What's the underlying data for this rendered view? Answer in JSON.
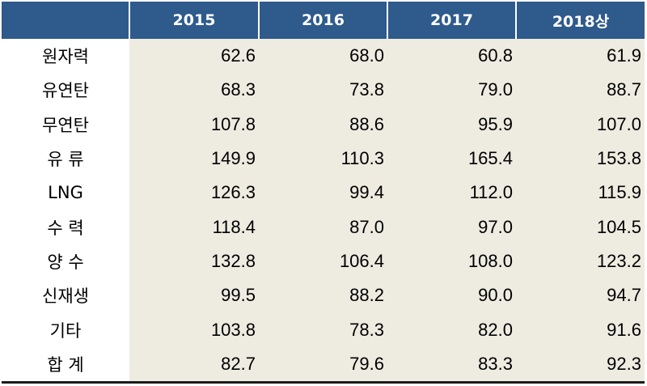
{
  "table": {
    "columns": [
      "2015",
      "2016",
      "2017",
      "2018상"
    ],
    "rows": [
      {
        "label": "원자력",
        "values": [
          "62.6",
          "68.0",
          "60.8",
          "61.9"
        ]
      },
      {
        "label": "유연탄",
        "values": [
          "68.3",
          "73.8",
          "79.0",
          "88.7"
        ]
      },
      {
        "label": "무연탄",
        "values": [
          "107.8",
          "88.6",
          "95.9",
          "107.0"
        ]
      },
      {
        "label": "유 류",
        "values": [
          "149.9",
          "110.3",
          "165.4",
          "153.8"
        ]
      },
      {
        "label": "LNG",
        "values": [
          "126.3",
          "99.4",
          "112.0",
          "115.9"
        ]
      },
      {
        "label": "수 력",
        "values": [
          "118.4",
          "87.0",
          "97.0",
          "104.5"
        ]
      },
      {
        "label": "양 수",
        "values": [
          "132.8",
          "106.4",
          "108.0",
          "123.2"
        ]
      },
      {
        "label": "신재생",
        "values": [
          "99.5",
          "88.2",
          "90.0",
          "94.7"
        ]
      },
      {
        "label": "기타",
        "values": [
          "103.8",
          "78.3",
          "82.0",
          "91.6"
        ]
      },
      {
        "label": "합 계",
        "values": [
          "82.7",
          "79.6",
          "83.3",
          "92.3"
        ]
      }
    ]
  },
  "colors": {
    "header_bg": "#2e5a8c",
    "cell_bg": "#eeebe1"
  }
}
